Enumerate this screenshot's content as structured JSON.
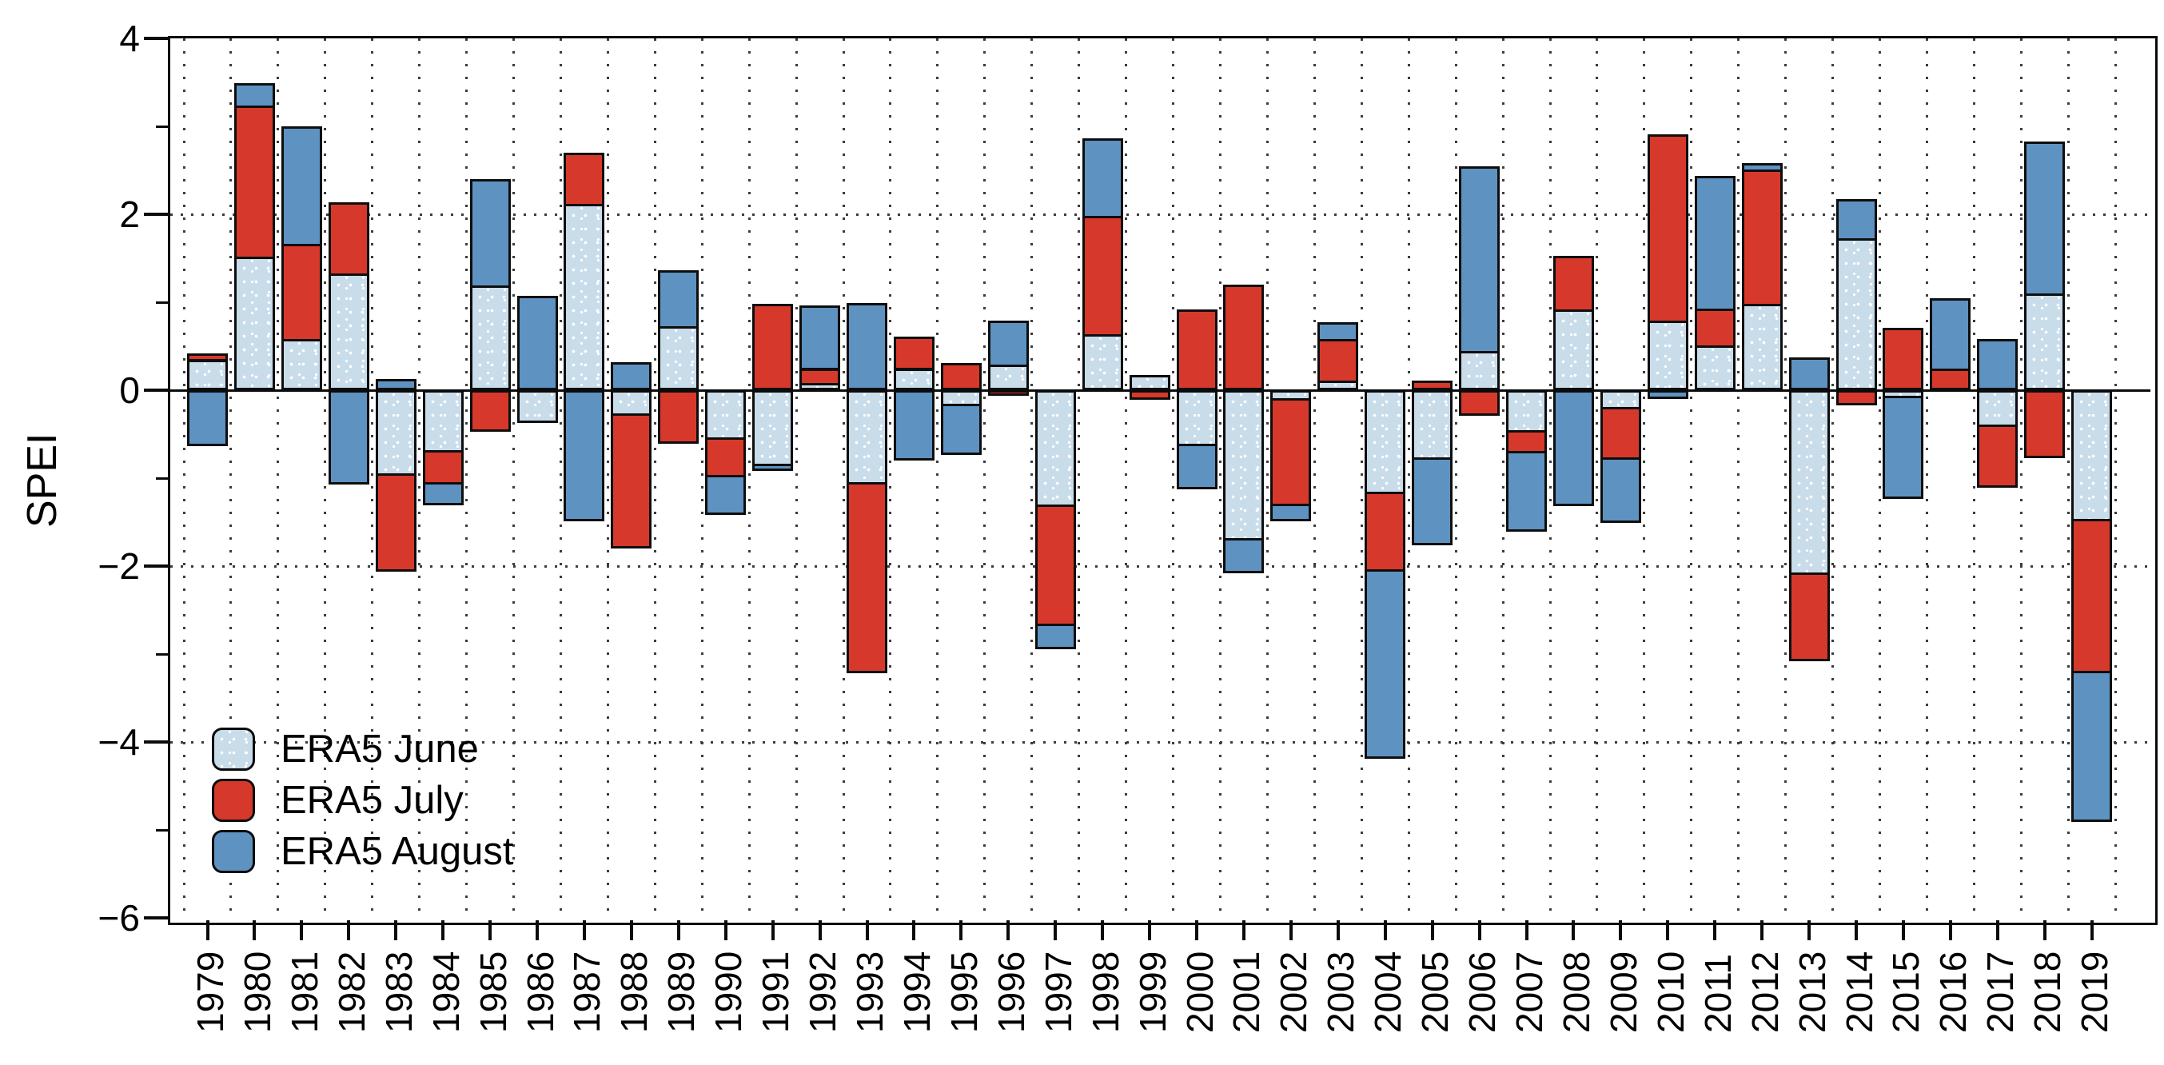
{
  "chart_data": {
    "type": "bar",
    "stacked": true,
    "title": "",
    "xlabel": "",
    "ylabel": "SPEI",
    "ylim": [
      -6,
      4
    ],
    "grid": "dotted",
    "legend_position": "inside bottom-left",
    "background": "#ffffff",
    "axis_color": "#0b0b0b",
    "y_major_ticks": [
      4,
      2,
      0,
      -2,
      -4,
      -6
    ],
    "y_major_labels": [
      "4",
      "2",
      "0",
      "−2",
      "−4",
      "−6"
    ],
    "y_minor_ticks": [
      3,
      1,
      -1,
      -3,
      -5
    ],
    "h_gridlines_at": [
      2,
      -2,
      -4
    ],
    "categories": [
      "1979",
      "1980",
      "1981",
      "1982",
      "1983",
      "1984",
      "1985",
      "1986",
      "1987",
      "1988",
      "1989",
      "1990",
      "1991",
      "1992",
      "1993",
      "1994",
      "1995",
      "1996",
      "1997",
      "1998",
      "1999",
      "2000",
      "2001",
      "2002",
      "2003",
      "2004",
      "2005",
      "2006",
      "2007",
      "2008",
      "2009",
      "2010",
      "2011",
      "2012",
      "2013",
      "2014",
      "2015",
      "2016",
      "2017",
      "2018",
      "2019"
    ],
    "series": [
      {
        "name": "ERA5 June",
        "color": "#c8dcea",
        "pattern": "white-stipple",
        "values": [
          0.35,
          1.52,
          0.58,
          1.33,
          -0.97,
          -0.71,
          1.19,
          -0.37,
          2.12,
          -0.29,
          0.73,
          -0.56,
          -0.86,
          0.08,
          -1.07,
          0.25,
          -0.18,
          0.29,
          -1.33,
          0.64,
          0.17,
          -0.64,
          -1.71,
          -0.12,
          0.11,
          -1.18,
          -0.79,
          0.45,
          -0.48,
          0.92,
          -0.22,
          0.79,
          0.51,
          0.98,
          -2.1,
          1.73,
          -0.09,
          0.0,
          -0.42,
          1.1,
          -1.49
        ]
      },
      {
        "name": "ERA5 July",
        "color": "#d6392b",
        "pattern": "solid",
        "values": [
          0.07,
          1.72,
          1.08,
          0.81,
          -1.09,
          -0.36,
          -0.47,
          0.0,
          0.58,
          -1.51,
          -0.61,
          -0.43,
          0.98,
          0.17,
          -2.15,
          0.36,
          0.31,
          -0.06,
          -1.35,
          1.34,
          -0.11,
          0.92,
          1.2,
          -1.2,
          0.47,
          -0.88,
          0.11,
          -0.29,
          -0.24,
          0.61,
          -0.57,
          2.12,
          0.42,
          1.53,
          -0.98,
          -0.17,
          0.71,
          0.25,
          -0.69,
          -0.77,
          -1.73
        ]
      },
      {
        "name": "ERA5 August",
        "color": "#5e92c1",
        "pattern": "solid",
        "values": [
          -0.64,
          0.25,
          1.34,
          -1.07,
          0.13,
          -0.24,
          1.21,
          1.07,
          -1.49,
          0.32,
          0.63,
          -0.43,
          -0.06,
          0.71,
          0.99,
          -0.8,
          -0.56,
          0.5,
          -0.27,
          0.88,
          0.0,
          -0.49,
          -0.37,
          -0.17,
          0.19,
          -2.13,
          -0.97,
          2.1,
          -0.89,
          -1.32,
          -0.72,
          -0.1,
          1.51,
          0.07,
          0.37,
          0.44,
          -1.15,
          0.8,
          0.58,
          1.73,
          -1.69
        ]
      }
    ]
  },
  "legend": {
    "items": [
      {
        "label": "ERA5 June"
      },
      {
        "label": "ERA5 July"
      },
      {
        "label": "ERA5 August"
      }
    ]
  }
}
